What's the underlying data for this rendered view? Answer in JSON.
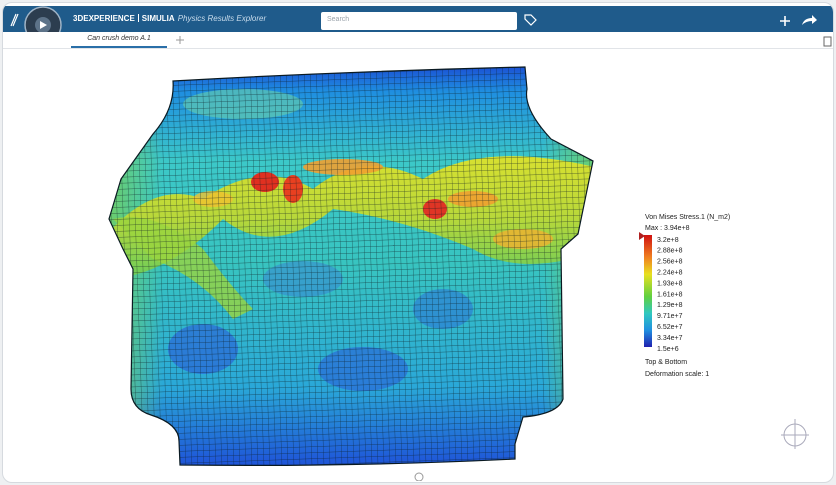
{
  "header": {
    "brand": "3DEXPERIENCE",
    "platform": "SIMULIA",
    "app_name": "Physics Results Explorer",
    "search_placeholder": "Search"
  },
  "tabs": [
    {
      "label": "Can crush demo A.1"
    }
  ],
  "legend": {
    "title": "Von Mises Stress.1 (N_m2)",
    "max": "Max : 3.94e+8",
    "labels": [
      "3.2e+8",
      "2.88e+8",
      "2.56e+8",
      "2.24e+8",
      "1.93e+8",
      "1.61e+8",
      "1.29e+8",
      "9.71e+7",
      "6.52e+7",
      "3.34e+7",
      "1.5e+6"
    ],
    "scope": "Top & Bottom",
    "deformation": "Deformation scale: 1"
  }
}
